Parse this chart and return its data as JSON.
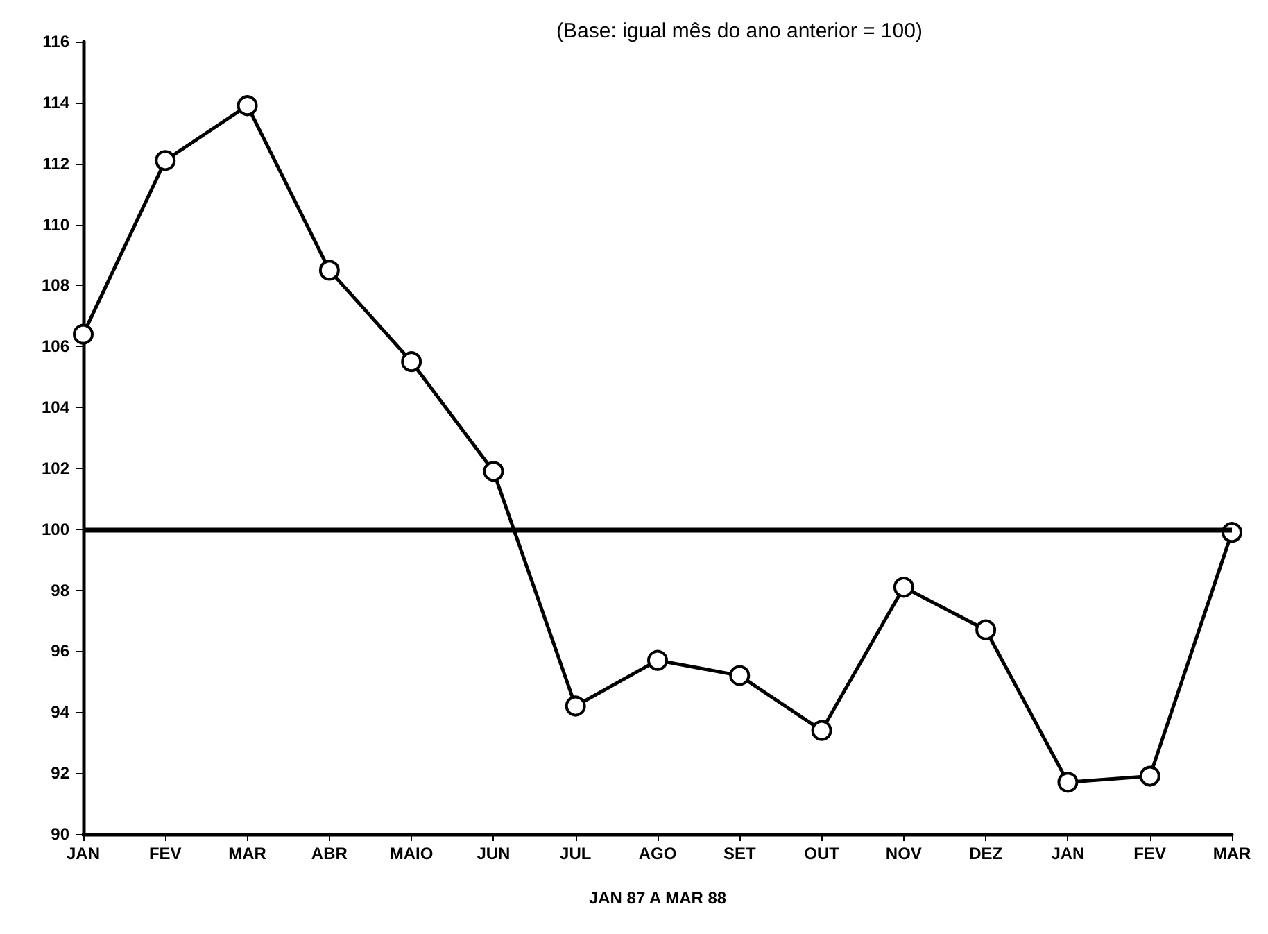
{
  "chart_data": {
    "type": "line",
    "title": "(Base: igual mês do ano anterior = 100)",
    "xlabel": "JAN 87 A MAR 88",
    "categories": [
      "JAN",
      "FEV",
      "MAR",
      "ABR",
      "MAIO",
      "JUN",
      "JUL",
      "AGO",
      "SET",
      "OUT",
      "NOV",
      "DEZ",
      "JAN",
      "FEV",
      "MAR"
    ],
    "series": [
      {
        "color": "#000000",
        "values": [
          106.4,
          112.1,
          113.9,
          108.5,
          105.5,
          101.9,
          94.2,
          95.7,
          95.2,
          93.4,
          98.1,
          96.7,
          91.7,
          91.9,
          99.9
        ]
      }
    ],
    "ylim": [
      90,
      116
    ],
    "yticks": [
      90,
      92,
      94,
      96,
      98,
      100,
      102,
      104,
      106,
      108,
      110,
      112,
      114,
      116
    ],
    "ref_lines": [
      {
        "axis": "y",
        "value": 100,
        "color": "#000000"
      }
    ],
    "grid": false,
    "marker": "circle",
    "line_style": "solid"
  }
}
